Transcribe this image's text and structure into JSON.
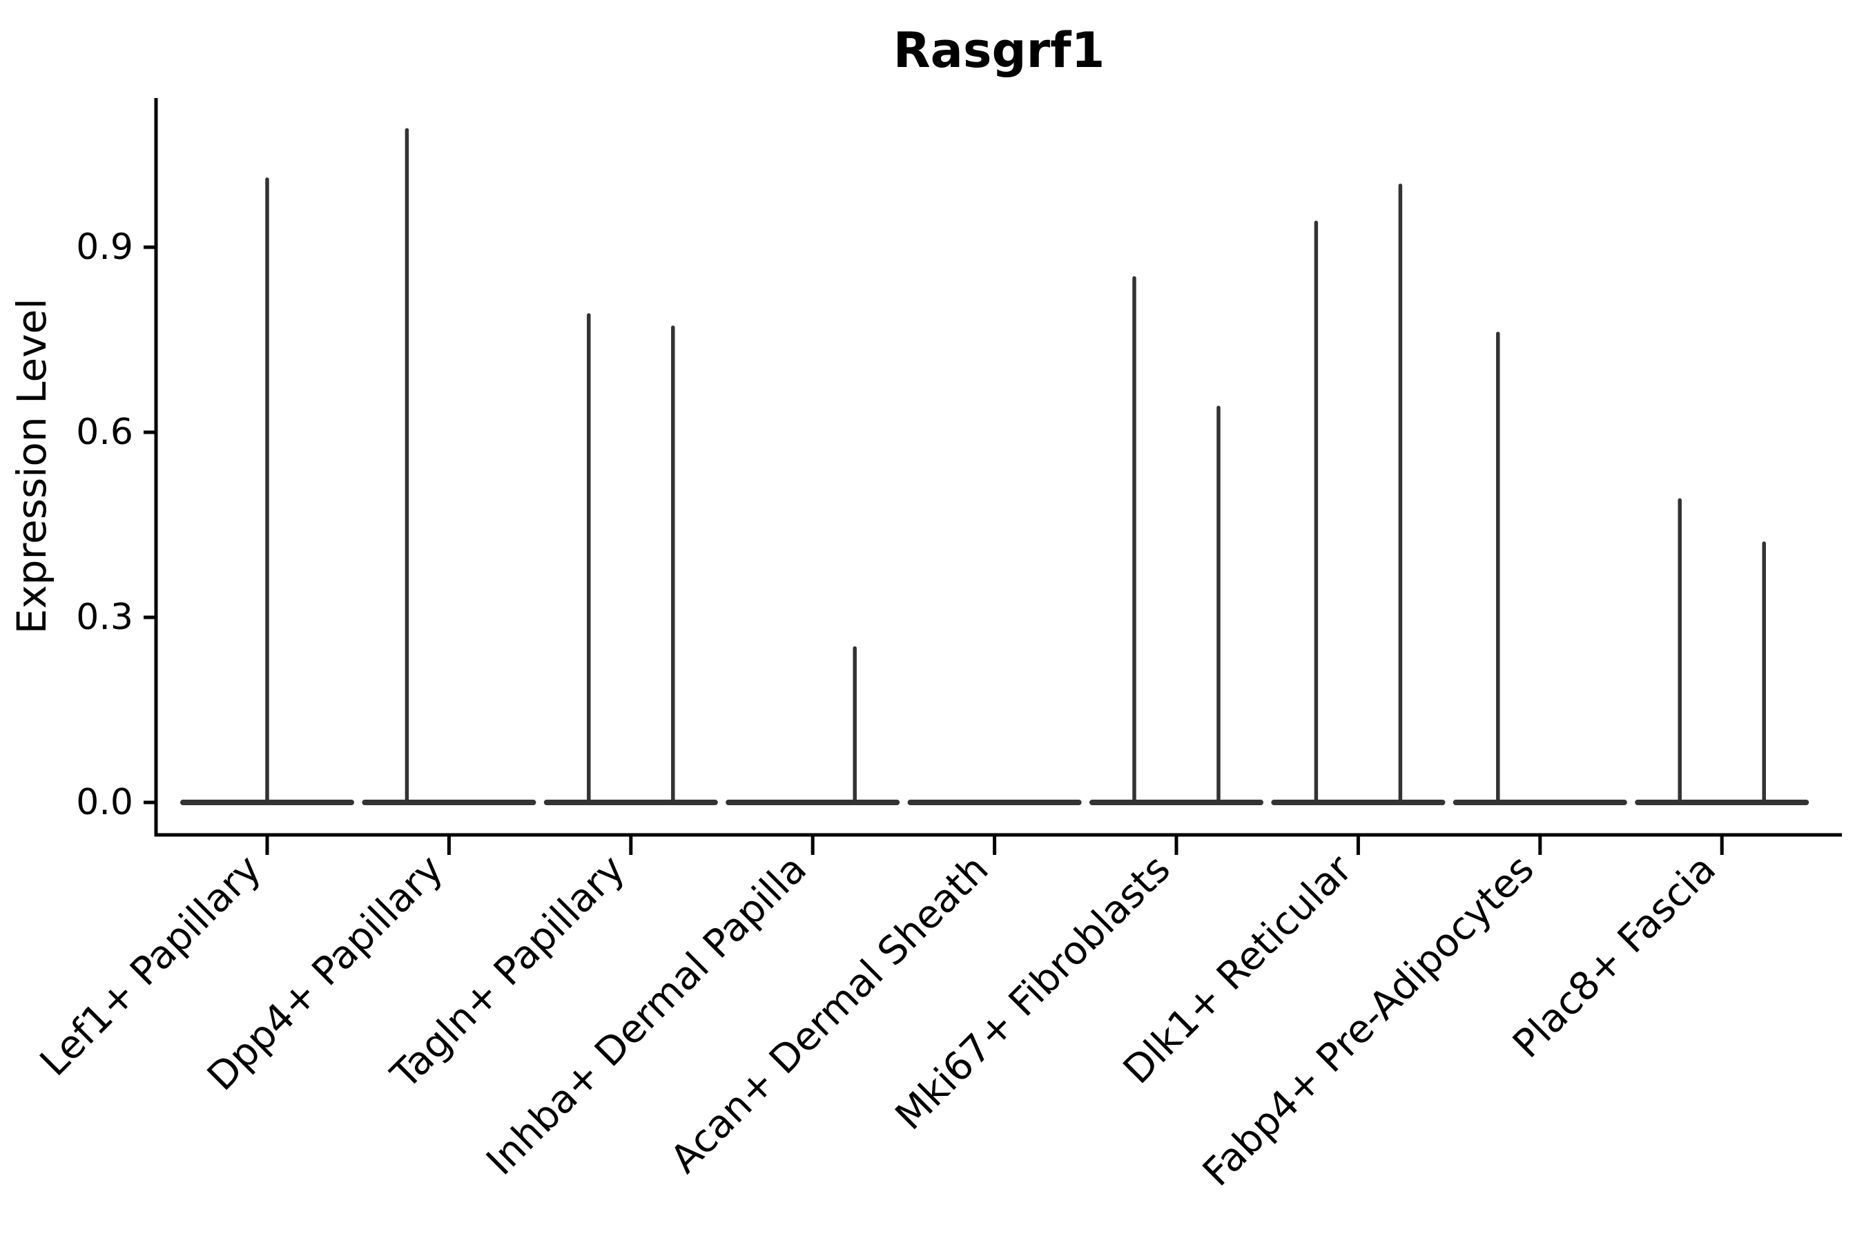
{
  "chart_data": {
    "type": "violin",
    "title": "Rasgrf1",
    "ylabel": "Expression Level",
    "xlabel": "",
    "grid": false,
    "legend": "none",
    "ylim": [
      -0.053,
      1.143
    ],
    "yticks": [
      {
        "label": "0.0",
        "value": 0.0
      },
      {
        "label": "0.3",
        "value": 0.3
      },
      {
        "label": "0.6",
        "value": 0.6
      },
      {
        "label": "0.9",
        "value": 0.9
      }
    ],
    "categories": [
      "Lef1+ Papillary",
      "Dpp4+ Papillary",
      "Tagln+ Papillary",
      "Inhba+ Dermal Papilla",
      "Acan+ Dermal Sheath",
      "Mki67+ Fibroblasts",
      "Dlk1+ Reticular",
      "Fabp4+ Pre-Adipocytes",
      "Plac8+ Fascia"
    ],
    "series": [
      {
        "name": "Lef1+ Papillary",
        "baseline_value": 0.0,
        "peaks": [
          {
            "offset_frac": 0.0,
            "value": 1.01
          }
        ]
      },
      {
        "name": "Dpp4+ Papillary",
        "baseline_value": 0.0,
        "peaks": [
          {
            "offset_frac": -0.25,
            "value": 1.09
          }
        ]
      },
      {
        "name": "Tagln+ Papillary",
        "baseline_value": 0.0,
        "peaks": [
          {
            "offset_frac": -0.25,
            "value": 0.79
          },
          {
            "offset_frac": 0.25,
            "value": 0.77
          }
        ]
      },
      {
        "name": "Inhba+ Dermal Papilla",
        "baseline_value": 0.0,
        "peaks": [
          {
            "offset_frac": 0.25,
            "value": 0.25
          }
        ]
      },
      {
        "name": "Acan+ Dermal Sheath",
        "baseline_value": 0.0,
        "peaks": []
      },
      {
        "name": "Mki67+ Fibroblasts",
        "baseline_value": 0.0,
        "peaks": [
          {
            "offset_frac": -0.25,
            "value": 0.85
          },
          {
            "offset_frac": 0.25,
            "value": 0.64
          }
        ]
      },
      {
        "name": "Dlk1+ Reticular",
        "baseline_value": 0.0,
        "peaks": [
          {
            "offset_frac": -0.25,
            "value": 0.94
          },
          {
            "offset_frac": 0.25,
            "value": 1.0
          }
        ]
      },
      {
        "name": "Fabp4+ Pre-Adipocytes",
        "baseline_value": 0.0,
        "peaks": [
          {
            "offset_frac": -0.25,
            "value": 0.76
          }
        ]
      },
      {
        "name": "Plac8+ Fascia",
        "baseline_value": 0.0,
        "peaks": [
          {
            "offset_frac": -0.25,
            "value": 0.49
          },
          {
            "offset_frac": 0.25,
            "value": 0.42
          }
        ]
      }
    ],
    "colors": {
      "violin": "#333333",
      "axis": "#000000",
      "text": "#000000",
      "background": "#ffffff"
    }
  }
}
